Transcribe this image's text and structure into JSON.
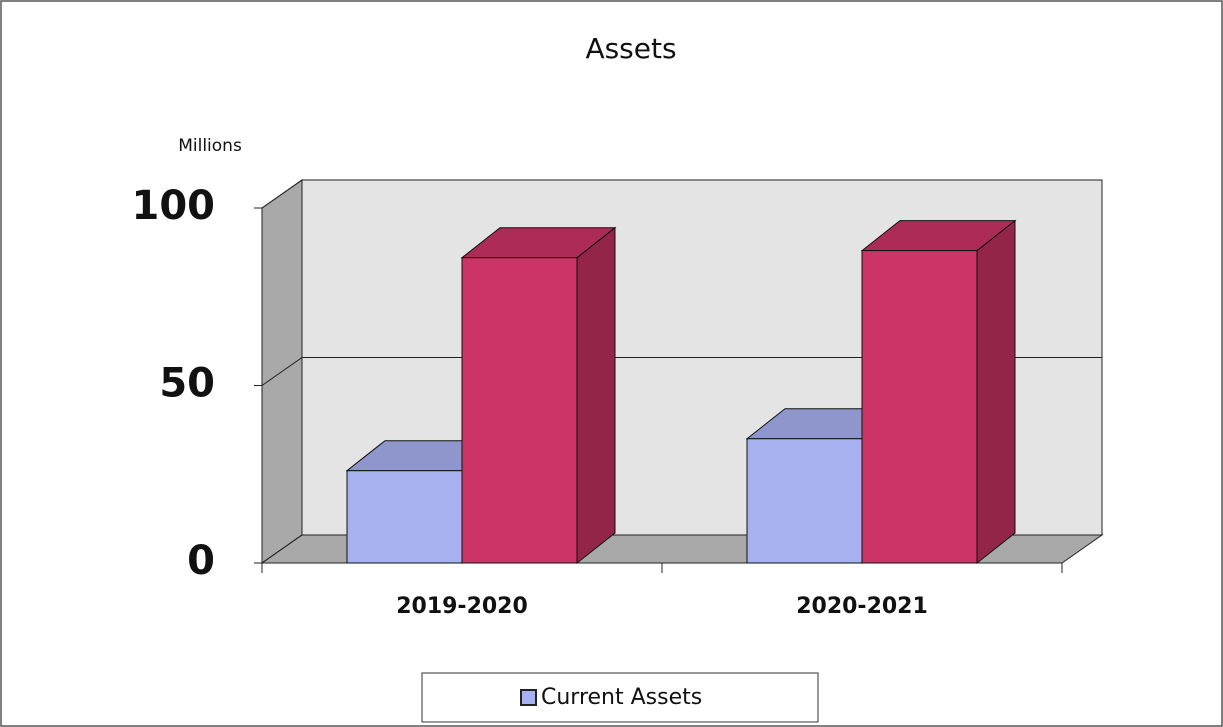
{
  "chart_data": {
    "type": "bar3d",
    "title": "Assets",
    "y_label": "Millions",
    "categories": [
      "2019-2020",
      "2020-2021"
    ],
    "series": [
      {
        "name": "Current Assets",
        "color": "#a7b1ef",
        "values": [
          26,
          35
        ]
      },
      {
        "color": "#cc3366",
        "values": [
          86,
          88
        ]
      }
    ],
    "ylim": [
      0,
      100
    ],
    "yticks": [
      0,
      50,
      100
    ],
    "grid": true
  }
}
